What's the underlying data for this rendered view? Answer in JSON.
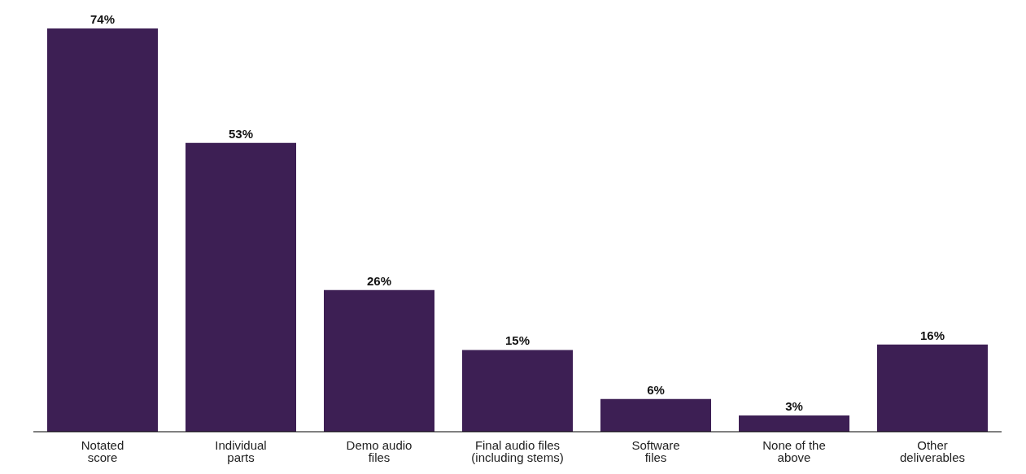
{
  "chart_data": {
    "type": "bar",
    "categories": [
      "Notated\nscore",
      "Individual\nparts",
      "Demo audio\nfiles",
      "Final audio files\n(including stems)",
      "Software\nfiles",
      "None of the\nabove",
      "Other\ndeliverables"
    ],
    "values": [
      74,
      53,
      26,
      15,
      6,
      3,
      16
    ],
    "value_labels": [
      "74%",
      "53%",
      "26%",
      "15%",
      "6%",
      "3%",
      "16%"
    ],
    "color": "#3d1f54",
    "tick_labels": "x"
  }
}
